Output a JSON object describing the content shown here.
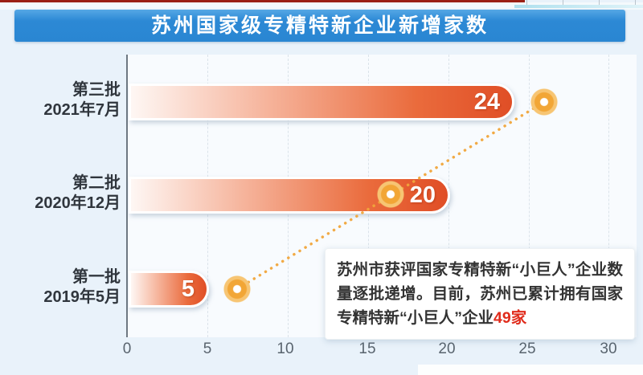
{
  "title": "苏州国家级专精特新企业新增家数",
  "chart_data": {
    "type": "bar",
    "orientation": "horizontal",
    "title": "苏州国家级专精特新企业新增家数",
    "categories": [
      "第三批 2021年7月",
      "第二批 2020年12月",
      "第一批 2019年5月"
    ],
    "rows": [
      {
        "batch": "第三批",
        "date": "2021年7月",
        "value": 24
      },
      {
        "batch": "第二批",
        "date": "2020年12月",
        "value": 20
      },
      {
        "batch": "第一批",
        "date": "2019年5月",
        "value": 5
      }
    ],
    "values": [
      24,
      20,
      5
    ],
    "x_ticks": [
      "0",
      "5",
      "10",
      "15",
      "20",
      "25",
      "30"
    ],
    "xlim": [
      0,
      30
    ],
    "grid": "vertical-dashed",
    "legend": "none",
    "trend_line": "dotted line with ring markers rising from batch 1 to batch 3",
    "colors": {
      "title_bg": "#2a86d2",
      "bar_gradient_start": "#fef7f4",
      "bar_gradient_end": "#e04e26",
      "marker": "#f2a636",
      "background": "#e9f2fa"
    }
  },
  "annotation": {
    "text_before": "苏州市获评国家专精特新“小巨人”企业数量逐批递增。目前，苏州已累计拥有国家专精特新“小巨人”企业",
    "highlight": "49家",
    "highlight_color": "#e02c1c"
  }
}
